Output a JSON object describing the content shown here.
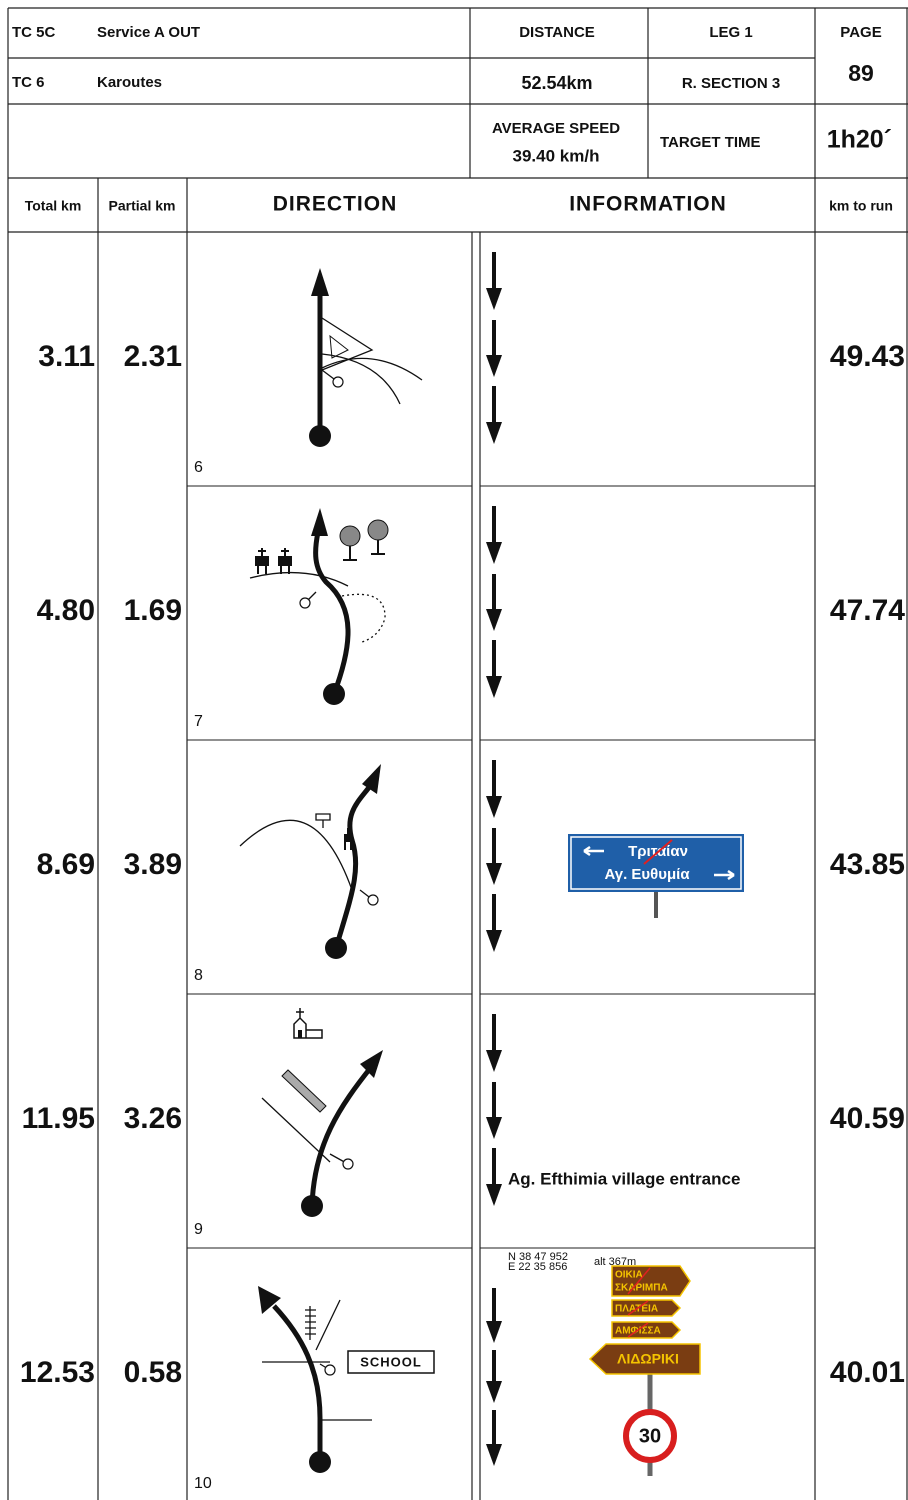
{
  "header": {
    "tc_from": "TC 5C",
    "tc_from_name": "Service A OUT",
    "tc_to": "TC 6",
    "tc_to_name": "Karoutes",
    "distance_label": "DISTANCE",
    "distance": "52.54km",
    "leg": "LEG 1",
    "section": "R. SECTION 3",
    "page_label": "PAGE",
    "page": 89,
    "avg_speed_label": "AVERAGE SPEED",
    "avg_speed": "39.40 km/h",
    "target_time_label": "TARGET TIME",
    "target_time": "1h20´"
  },
  "columns": [
    "Total km",
    "Partial km",
    "DIRECTION",
    "INFORMATION",
    "km to run"
  ],
  "rows": [
    {
      "number": 6,
      "total": "3.11",
      "partial": "2.31",
      "to_run": "49.43"
    },
    {
      "number": 7,
      "total": "4.80",
      "partial": "1.69",
      "to_run": "47.74"
    },
    {
      "number": 8,
      "total": "8.69",
      "partial": "3.89",
      "to_run": "43.85",
      "sign": [
        "Τριταίαν",
        "Αγ. Ευθυμία"
      ]
    },
    {
      "number": 9,
      "total": "11.95",
      "partial": "3.26",
      "to_run": "40.59",
      "info": "Ag. Efthimia  village entrance"
    },
    {
      "number": 10,
      "total": "12.53",
      "partial": "0.58",
      "to_run": "40.01",
      "gps": [
        "N 38 47 952",
        "E 22 35 856"
      ],
      "alt": "alt 367m",
      "label": "SCHOOL",
      "signs": [
        "ΟΙΚΙΑ",
        "ΣΚΑΡΙΜΠΑ",
        "ΠΛΑΤΕΙΑ",
        "ΑΜΦΙΣΣΑ",
        "ΛΙΔΩΡΙΚΙ"
      ],
      "speed_limit": 30
    }
  ]
}
